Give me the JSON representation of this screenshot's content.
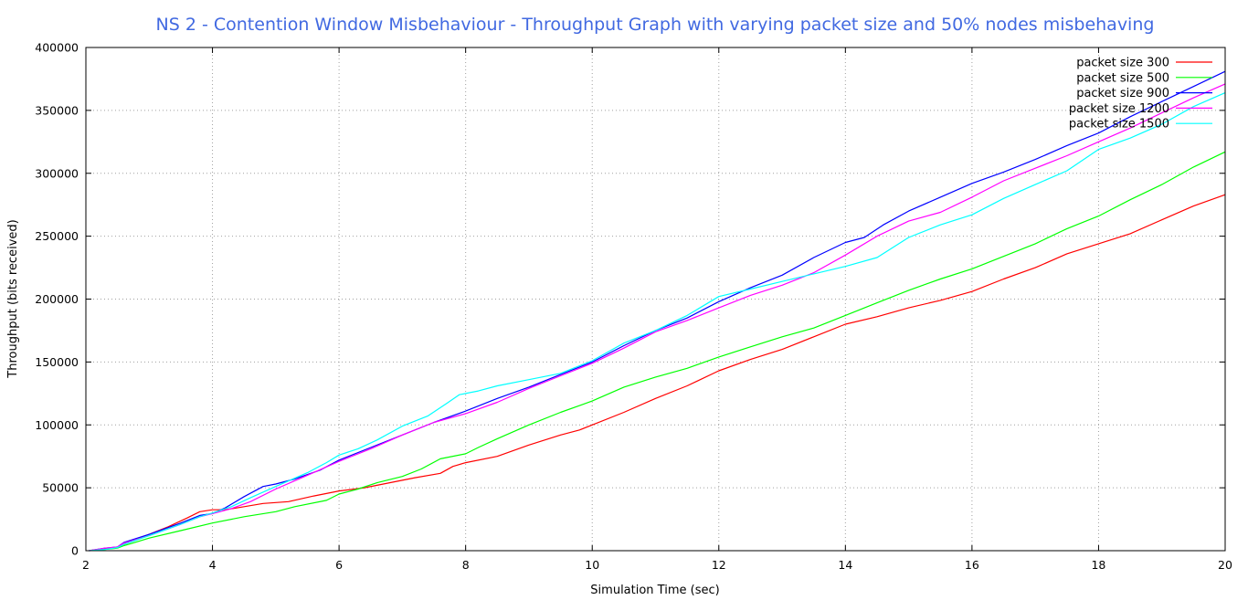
{
  "chart_data": {
    "type": "line",
    "title": "NS 2 - Contention Window Misbehaviour - Throughput Graph with varying packet size and 50% nodes misbehaving",
    "xlabel": "Simulation Time (sec)",
    "ylabel": "Throughput (bits received)",
    "xlim": [
      2,
      20
    ],
    "ylim": [
      0,
      400000
    ],
    "xticks": [
      2,
      4,
      6,
      8,
      10,
      12,
      14,
      16,
      18,
      20
    ],
    "yticks": [
      0,
      50000,
      100000,
      150000,
      200000,
      250000,
      300000,
      350000,
      400000
    ],
    "xtick_labels": [
      "2",
      "4",
      "6",
      "8",
      "10",
      "12",
      "14",
      "16",
      "18",
      "20"
    ],
    "ytick_labels": [
      "0",
      "50000",
      "100000",
      "150000",
      "200000",
      "250000",
      "300000",
      "350000",
      "400000"
    ],
    "grid": true,
    "legend_position": "top-right",
    "series": [
      {
        "name": "packet size 300",
        "color": "#ff0000",
        "points": [
          [
            2.05,
            0
          ],
          [
            2.3,
            1500
          ],
          [
            2.5,
            2500
          ],
          [
            2.6,
            5000
          ],
          [
            2.8,
            9000
          ],
          [
            3.0,
            13000
          ],
          [
            3.3,
            19000
          ],
          [
            3.6,
            26000
          ],
          [
            3.8,
            31000
          ],
          [
            4.0,
            32500
          ],
          [
            4.2,
            32500
          ],
          [
            4.5,
            35000
          ],
          [
            4.8,
            37500
          ],
          [
            5.2,
            39000
          ],
          [
            5.6,
            43500
          ],
          [
            6.0,
            47500
          ],
          [
            6.4,
            50000
          ],
          [
            6.8,
            54000
          ],
          [
            7.2,
            58000
          ],
          [
            7.6,
            61500
          ],
          [
            7.8,
            67000
          ],
          [
            8.0,
            70000
          ],
          [
            8.5,
            75000
          ],
          [
            9.0,
            84000
          ],
          [
            9.5,
            92000
          ],
          [
            9.8,
            96000
          ],
          [
            10.0,
            100000
          ],
          [
            10.5,
            110000
          ],
          [
            11.0,
            121000
          ],
          [
            11.5,
            131000
          ],
          [
            12.0,
            143000
          ],
          [
            12.5,
            152000
          ],
          [
            13.0,
            160000
          ],
          [
            13.5,
            170000
          ],
          [
            14.0,
            180000
          ],
          [
            14.5,
            186000
          ],
          [
            15.0,
            193000
          ],
          [
            15.5,
            199000
          ],
          [
            16.0,
            206000
          ],
          [
            16.5,
            216000
          ],
          [
            17.0,
            225000
          ],
          [
            17.5,
            236000
          ],
          [
            18.0,
            244000
          ],
          [
            18.5,
            252000
          ],
          [
            19.0,
            263000
          ],
          [
            19.5,
            274000
          ],
          [
            20.0,
            283000
          ]
        ]
      },
      {
        "name": "packet size 500",
        "color": "#00ff00",
        "points": [
          [
            2.05,
            0
          ],
          [
            2.3,
            1000
          ],
          [
            2.5,
            2000
          ],
          [
            2.6,
            4000
          ],
          [
            2.8,
            7000
          ],
          [
            3.0,
            10000
          ],
          [
            3.5,
            16000
          ],
          [
            4.0,
            22000
          ],
          [
            4.5,
            27000
          ],
          [
            5.0,
            31000
          ],
          [
            5.3,
            35000
          ],
          [
            5.8,
            40000
          ],
          [
            6.0,
            45000
          ],
          [
            6.3,
            49000
          ],
          [
            6.6,
            54000
          ],
          [
            7.0,
            59000
          ],
          [
            7.3,
            65000
          ],
          [
            7.6,
            73000
          ],
          [
            8.0,
            77000
          ],
          [
            8.2,
            82000
          ],
          [
            8.5,
            89000
          ],
          [
            9.0,
            100000
          ],
          [
            9.5,
            110000
          ],
          [
            10.0,
            119000
          ],
          [
            10.5,
            130000
          ],
          [
            11.0,
            138000
          ],
          [
            11.5,
            145000
          ],
          [
            12.0,
            154000
          ],
          [
            12.5,
            162000
          ],
          [
            13.0,
            170000
          ],
          [
            13.5,
            177000
          ],
          [
            14.0,
            187000
          ],
          [
            14.5,
            197000
          ],
          [
            15.0,
            207000
          ],
          [
            15.5,
            216000
          ],
          [
            16.0,
            224000
          ],
          [
            16.5,
            234000
          ],
          [
            17.0,
            244000
          ],
          [
            17.5,
            256000
          ],
          [
            18.0,
            266000
          ],
          [
            18.5,
            279000
          ],
          [
            19.0,
            291000
          ],
          [
            19.5,
            305000
          ],
          [
            20.0,
            317000
          ]
        ]
      },
      {
        "name": "packet size 900",
        "color": "#0000ff",
        "points": [
          [
            2.05,
            0
          ],
          [
            2.3,
            2000
          ],
          [
            2.5,
            3000
          ],
          [
            2.6,
            6500
          ],
          [
            3.0,
            13000
          ],
          [
            3.5,
            22000
          ],
          [
            3.8,
            28000
          ],
          [
            4.0,
            29500
          ],
          [
            4.2,
            34000
          ],
          [
            4.5,
            43000
          ],
          [
            4.8,
            51000
          ],
          [
            5.0,
            53000
          ],
          [
            5.3,
            57000
          ],
          [
            5.7,
            64000
          ],
          [
            6.0,
            72000
          ],
          [
            6.5,
            82000
          ],
          [
            7.0,
            92000
          ],
          [
            7.5,
            102000
          ],
          [
            8.0,
            111000
          ],
          [
            8.5,
            121000
          ],
          [
            9.0,
            130000
          ],
          [
            9.5,
            140000
          ],
          [
            10.0,
            150000
          ],
          [
            10.5,
            163000
          ],
          [
            11.0,
            175000
          ],
          [
            11.5,
            185000
          ],
          [
            12.0,
            198000
          ],
          [
            12.5,
            209000
          ],
          [
            13.0,
            219000
          ],
          [
            13.5,
            233000
          ],
          [
            14.0,
            245000
          ],
          [
            14.3,
            249000
          ],
          [
            14.6,
            259000
          ],
          [
            15.0,
            270000
          ],
          [
            15.5,
            281000
          ],
          [
            16.0,
            292000
          ],
          [
            16.5,
            301000
          ],
          [
            17.0,
            311000
          ],
          [
            17.5,
            322000
          ],
          [
            18.0,
            332000
          ],
          [
            18.5,
            345000
          ],
          [
            19.0,
            357000
          ],
          [
            19.5,
            369000
          ],
          [
            20.0,
            381000
          ]
        ]
      },
      {
        "name": "packet size 1200",
        "color": "#ff00ff",
        "points": [
          [
            2.05,
            0
          ],
          [
            2.3,
            2000
          ],
          [
            2.5,
            3000
          ],
          [
            2.6,
            6000
          ],
          [
            3.0,
            12000
          ],
          [
            3.5,
            21000
          ],
          [
            3.8,
            27000
          ],
          [
            4.0,
            29500
          ],
          [
            4.3,
            33500
          ],
          [
            4.6,
            39000
          ],
          [
            5.0,
            49000
          ],
          [
            5.5,
            60000
          ],
          [
            6.0,
            71000
          ],
          [
            6.5,
            81000
          ],
          [
            7.0,
            92000
          ],
          [
            7.5,
            102000
          ],
          [
            8.0,
            109000
          ],
          [
            8.5,
            118000
          ],
          [
            9.0,
            129000
          ],
          [
            9.5,
            139000
          ],
          [
            10.0,
            149000
          ],
          [
            10.5,
            161000
          ],
          [
            11.0,
            174000
          ],
          [
            11.5,
            183000
          ],
          [
            12.0,
            193000
          ],
          [
            12.5,
            203000
          ],
          [
            13.0,
            211000
          ],
          [
            13.5,
            221000
          ],
          [
            14.0,
            235000
          ],
          [
            14.5,
            250000
          ],
          [
            15.0,
            262000
          ],
          [
            15.5,
            269000
          ],
          [
            16.0,
            281000
          ],
          [
            16.5,
            294000
          ],
          [
            17.0,
            304000
          ],
          [
            17.5,
            314000
          ],
          [
            18.0,
            325000
          ],
          [
            18.5,
            336000
          ],
          [
            19.0,
            348000
          ],
          [
            19.5,
            360000
          ],
          [
            20.0,
            371000
          ]
        ]
      },
      {
        "name": "packet size 1500",
        "color": "#00ffff",
        "points": [
          [
            2.05,
            0
          ],
          [
            2.3,
            1000
          ],
          [
            2.5,
            2500
          ],
          [
            2.6,
            5000
          ],
          [
            3.0,
            12000
          ],
          [
            3.5,
            21000
          ],
          [
            3.8,
            27000
          ],
          [
            4.0,
            30000
          ],
          [
            4.3,
            35000
          ],
          [
            4.6,
            42000
          ],
          [
            5.0,
            51000
          ],
          [
            5.5,
            62000
          ],
          [
            5.8,
            70000
          ],
          [
            6.0,
            76000
          ],
          [
            6.3,
            81000
          ],
          [
            6.6,
            88000
          ],
          [
            7.0,
            99000
          ],
          [
            7.4,
            107000
          ],
          [
            7.7,
            117000
          ],
          [
            7.9,
            124000
          ],
          [
            8.2,
            127000
          ],
          [
            8.5,
            131000
          ],
          [
            9.0,
            136000
          ],
          [
            9.5,
            141000
          ],
          [
            10.0,
            151000
          ],
          [
            10.5,
            165000
          ],
          [
            11.0,
            175000
          ],
          [
            11.5,
            187000
          ],
          [
            12.0,
            202000
          ],
          [
            12.5,
            208000
          ],
          [
            13.0,
            214000
          ],
          [
            13.5,
            220000
          ],
          [
            14.0,
            226000
          ],
          [
            14.5,
            233000
          ],
          [
            15.0,
            249000
          ],
          [
            15.5,
            259000
          ],
          [
            16.0,
            267000
          ],
          [
            16.5,
            280000
          ],
          [
            17.0,
            291000
          ],
          [
            17.5,
            302000
          ],
          [
            18.0,
            319000
          ],
          [
            18.5,
            328000
          ],
          [
            19.0,
            339000
          ],
          [
            19.5,
            353000
          ],
          [
            20.0,
            364000
          ]
        ]
      }
    ]
  }
}
